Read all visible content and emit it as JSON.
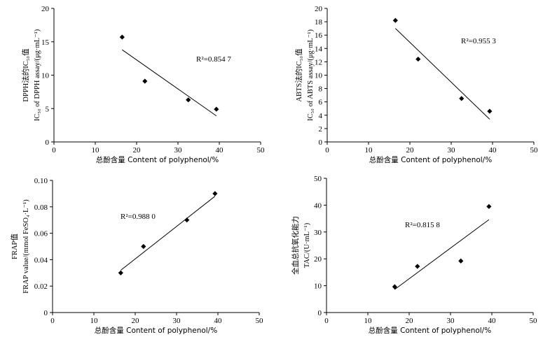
{
  "chart_data": [
    {
      "type": "scatter",
      "x": [
        16.5,
        22.0,
        32.5,
        39.3
      ],
      "y": [
        15.7,
        9.1,
        6.3,
        4.9
      ],
      "trendline": {
        "x": [
          16.5,
          39.3
        ],
        "y": [
          13.8,
          3.9
        ]
      },
      "xlim": [
        0,
        50
      ],
      "ylim": [
        0,
        20
      ],
      "xticks": [
        "0",
        "10",
        "20",
        "30",
        "40",
        "50"
      ],
      "yticks": [
        "0",
        "5",
        "10",
        "15",
        "20"
      ],
      "xlabel": "总酚含量 Content of polyphenol/%",
      "ylabel_line1": "DPPH法的IC₅₀值",
      "ylabel_line2": "IC₅₀ of DPPH assay/(μg·mL⁻¹)",
      "r2_label": "R²=0.854 7"
    },
    {
      "type": "scatter",
      "x": [
        16.5,
        22.0,
        32.5,
        39.3
      ],
      "y": [
        18.2,
        12.4,
        6.5,
        4.6
      ],
      "trendline": {
        "x": [
          16.5,
          39.3
        ],
        "y": [
          17.0,
          3.4
        ]
      },
      "xlim": [
        0,
        50
      ],
      "ylim": [
        0,
        20
      ],
      "xticks": [
        "0",
        "10",
        "20",
        "30",
        "40",
        "50"
      ],
      "yticks": [
        "0",
        "2",
        "4",
        "6",
        "8",
        "10",
        "12",
        "14",
        "16",
        "18",
        "20"
      ],
      "xlabel": "总酚含量 Content of polyphenol/%",
      "ylabel_line1": "ABTS法的IC₅₀值",
      "ylabel_line2": "IC₅₀ of ABTS assay/(μg·mL⁻¹)",
      "r2_label": "R²=0.955 3"
    },
    {
      "type": "scatter",
      "x": [
        16.5,
        22.0,
        32.5,
        39.3
      ],
      "y": [
        0.03,
        0.05,
        0.07,
        0.09
      ],
      "trendline": {
        "x": [
          16.5,
          39.3
        ],
        "y": [
          0.032,
          0.088
        ]
      },
      "xlim": [
        0,
        50
      ],
      "ylim": [
        0,
        0.1
      ],
      "xticks": [
        "0",
        "10",
        "20",
        "30",
        "40",
        "50"
      ],
      "yticks": [
        "0",
        "0.02",
        "0.04",
        "0.06",
        "0.08",
        "0.10"
      ],
      "xlabel": "总酚含量 Content of polyphenol/%",
      "ylabel_line1": "FRAP值",
      "ylabel_line2": "FRAP value/(mmol FeSO₄·L⁻¹)",
      "r2_label": "R²=0.988 0"
    },
    {
      "type": "scatter",
      "x": [
        16.5,
        22.0,
        32.5,
        39.3
      ],
      "y": [
        9.6,
        17.2,
        19.2,
        39.5
      ],
      "trendline": {
        "x": [
          16.5,
          39.3
        ],
        "y": [
          8.6,
          34.6
        ]
      },
      "xlim": [
        0,
        50
      ],
      "ylim": [
        0,
        50
      ],
      "xticks": [
        "0",
        "10",
        "20",
        "30",
        "40",
        "50"
      ],
      "yticks": [
        "0",
        "10",
        "20",
        "30",
        "40",
        "50"
      ],
      "xlabel": "总酚含量 Content of polyphenol/%",
      "ylabel_line1": "全血总抗氧化能力",
      "ylabel_line2": "TAC/(U·mL⁻¹)",
      "r2_label": "R²=0.815 8"
    }
  ]
}
